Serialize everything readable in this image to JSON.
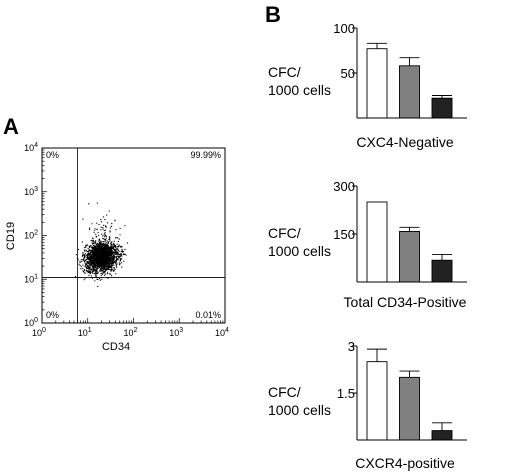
{
  "panel_a": {
    "letter": "A",
    "chart_data": {
      "type": "scatter",
      "xlabel": "CD34",
      "ylabel": "CD19",
      "xscale": "log",
      "yscale": "log",
      "xlim": [
        1,
        10000
      ],
      "ylim": [
        1,
        10000
      ],
      "tick_labels": [
        {
          "base": "10",
          "exp": "0",
          "value": 1
        },
        {
          "base": "10",
          "exp": "1",
          "value": 10
        },
        {
          "base": "10",
          "exp": "2",
          "value": 100
        },
        {
          "base": "10",
          "exp": "3",
          "value": 1000
        },
        {
          "base": "10",
          "exp": "4",
          "value": 10000
        }
      ],
      "gates": {
        "x": 6,
        "y": 11
      },
      "quadrants": {
        "upper_left": "0%",
        "upper_right": "99.99%",
        "lower_left": "0%",
        "lower_right": "0.01%"
      },
      "population": {
        "center_x": 20,
        "center_y": 33,
        "spread_x_log": 0.18,
        "spread_y_log": 0.17,
        "n": 2200
      }
    }
  },
  "panel_b": {
    "letter": "B",
    "chart_data": [
      {
        "type": "bar",
        "title": "CXC4-Negative",
        "ylabel_line1": "CFC/",
        "ylabel_line2": "1000 cells",
        "ylim": [
          0,
          100
        ],
        "yticks": [
          "50",
          "100"
        ],
        "ytick_values": [
          50,
          100
        ],
        "values": [
          77,
          58,
          22
        ],
        "errors": [
          6,
          9,
          3
        ],
        "colors": [
          "#ffffff",
          "#808080",
          "#222222"
        ]
      },
      {
        "type": "bar",
        "title": "Total CD34-Positive",
        "ylabel_line1": "CFC/",
        "ylabel_line2": "1000 cells",
        "ylim": [
          0,
          300
        ],
        "yticks": [
          "150",
          "300"
        ],
        "ytick_values": [
          150,
          300
        ],
        "values": [
          250,
          158,
          68
        ],
        "errors": [
          0,
          13,
          18
        ],
        "colors": [
          "#ffffff",
          "#808080",
          "#222222"
        ]
      },
      {
        "type": "bar",
        "title": "CXCR4-positive",
        "ylabel_line1": "CFC/",
        "ylabel_line2": "1000 cells",
        "ylim": [
          0,
          3
        ],
        "yticks": [
          "1.5",
          "3"
        ],
        "ytick_values": [
          1.5,
          3
        ],
        "values": [
          2.5,
          2.0,
          0.3
        ],
        "errors": [
          0.4,
          0.2,
          0.25
        ],
        "colors": [
          "#ffffff",
          "#808080",
          "#222222"
        ]
      }
    ]
  }
}
